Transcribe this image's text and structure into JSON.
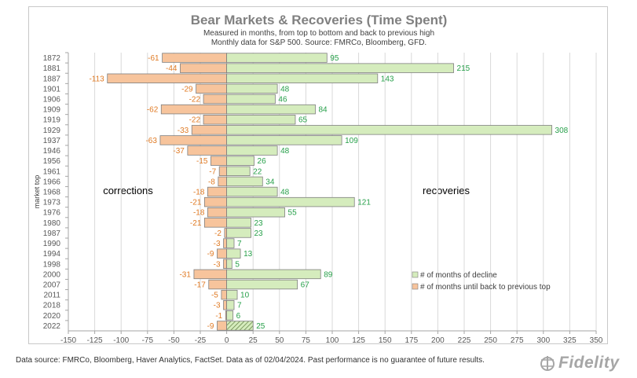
{
  "chart_data": {
    "type": "bar",
    "orientation": "horizontal",
    "title": "Bear Markets & Recoveries (Time Spent)",
    "subtitle_lines": [
      "Measured in months, from top to bottom and back to previous high",
      "Monthly data for S&P 500.  Source: FMRCo, Bloomberg, GFD."
    ],
    "ylabel": "market top",
    "xlim": [
      -150,
      350
    ],
    "xticks": [
      -150,
      -125,
      -100,
      -75,
      -50,
      -25,
      0,
      25,
      50,
      75,
      100,
      125,
      150,
      175,
      200,
      225,
      250,
      275,
      300,
      325,
      350
    ],
    "categories": [
      "1872",
      "1881",
      "1887",
      "1901",
      "1906",
      "1909",
      "1919",
      "1929",
      "1937",
      "1946",
      "1956",
      "1961",
      "1966",
      "1968",
      "1973",
      "1976",
      "1980",
      "1987",
      "1990",
      "1994",
      "1998",
      "2000",
      "2007",
      "2011",
      "2018",
      "2020",
      "2022"
    ],
    "series": [
      {
        "name": "# of months until back to previous top",
        "color": "#f7c49c",
        "label_color": "#e07b25",
        "values": [
          -61,
          -44,
          -113,
          -29,
          -22,
          -62,
          -22,
          -33,
          -63,
          -37,
          -15,
          -7,
          -8,
          -18,
          -21,
          -18,
          -21,
          -2,
          -3,
          -9,
          -3,
          -31,
          -17,
          -5,
          -3,
          -1,
          -9
        ]
      },
      {
        "name": "# of months of decline",
        "color": "#d5ecbd",
        "label_color": "#27a04a",
        "values": [
          95,
          215,
          143,
          48,
          46,
          84,
          65,
          308,
          109,
          48,
          26,
          22,
          34,
          48,
          121,
          55,
          23,
          23,
          7,
          13,
          5,
          89,
          67,
          10,
          7,
          6,
          25
        ]
      }
    ],
    "annotations": {
      "left": "corrections",
      "right": "recoveries"
    },
    "highlight_last_bar_hatched": true
  },
  "footnote": "Data source: FMRCo, Bloomberg, Haver Analytics, FactSet. Data as of 02/04/2024. Past performance is no guarantee of future results.",
  "brand": {
    "logo_text": "Fidelity"
  },
  "colors": {
    "title": "#808080",
    "axis": "#595959",
    "grid": "#d9d9d9"
  }
}
